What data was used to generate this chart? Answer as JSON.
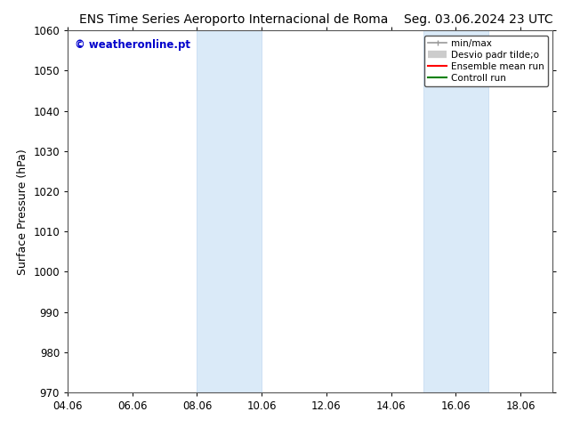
{
  "title_left": "ENS Time Series Aeroporto Internacional de Roma",
  "title_right": "Seg. 03.06.2024 23 UTC",
  "ylabel": "Surface Pressure (hPa)",
  "ylim": [
    970,
    1060
  ],
  "yticks": [
    970,
    980,
    990,
    1000,
    1010,
    1020,
    1030,
    1040,
    1050,
    1060
  ],
  "xlim_start": 4.06,
  "xlim_end": 19.06,
  "xticks": [
    4.06,
    6.06,
    8.06,
    10.06,
    12.06,
    14.06,
    16.06,
    18.06
  ],
  "xtick_labels": [
    "04.06",
    "06.06",
    "08.06",
    "10.06",
    "12.06",
    "14.06",
    "16.06",
    "18.06"
  ],
  "shaded_bands": [
    {
      "xmin": 8.06,
      "xmax": 10.06
    },
    {
      "xmin": 15.06,
      "xmax": 17.06
    }
  ],
  "shaded_color": "#daeaf8",
  "shaded_edge_color": "#c0d8f0",
  "background_color": "#ffffff",
  "plot_bg_color": "#ffffff",
  "watermark_text": "© weatheronline.pt",
  "watermark_color": "#0000cc",
  "legend_entries": [
    {
      "label": "min/max",
      "color": "#999999",
      "lw": 1.2
    },
    {
      "label": "Desvio padr tilde;o",
      "color": "#cccccc",
      "lw": 6
    },
    {
      "label": "Ensemble mean run",
      "color": "#ff0000",
      "lw": 1.5
    },
    {
      "label": "Controll run",
      "color": "#008000",
      "lw": 1.5
    }
  ],
  "title_fontsize": 10,
  "tick_fontsize": 8.5,
  "ylabel_fontsize": 9,
  "watermark_fontsize": 8.5,
  "legend_fontsize": 7.5,
  "border_color": "#555555"
}
